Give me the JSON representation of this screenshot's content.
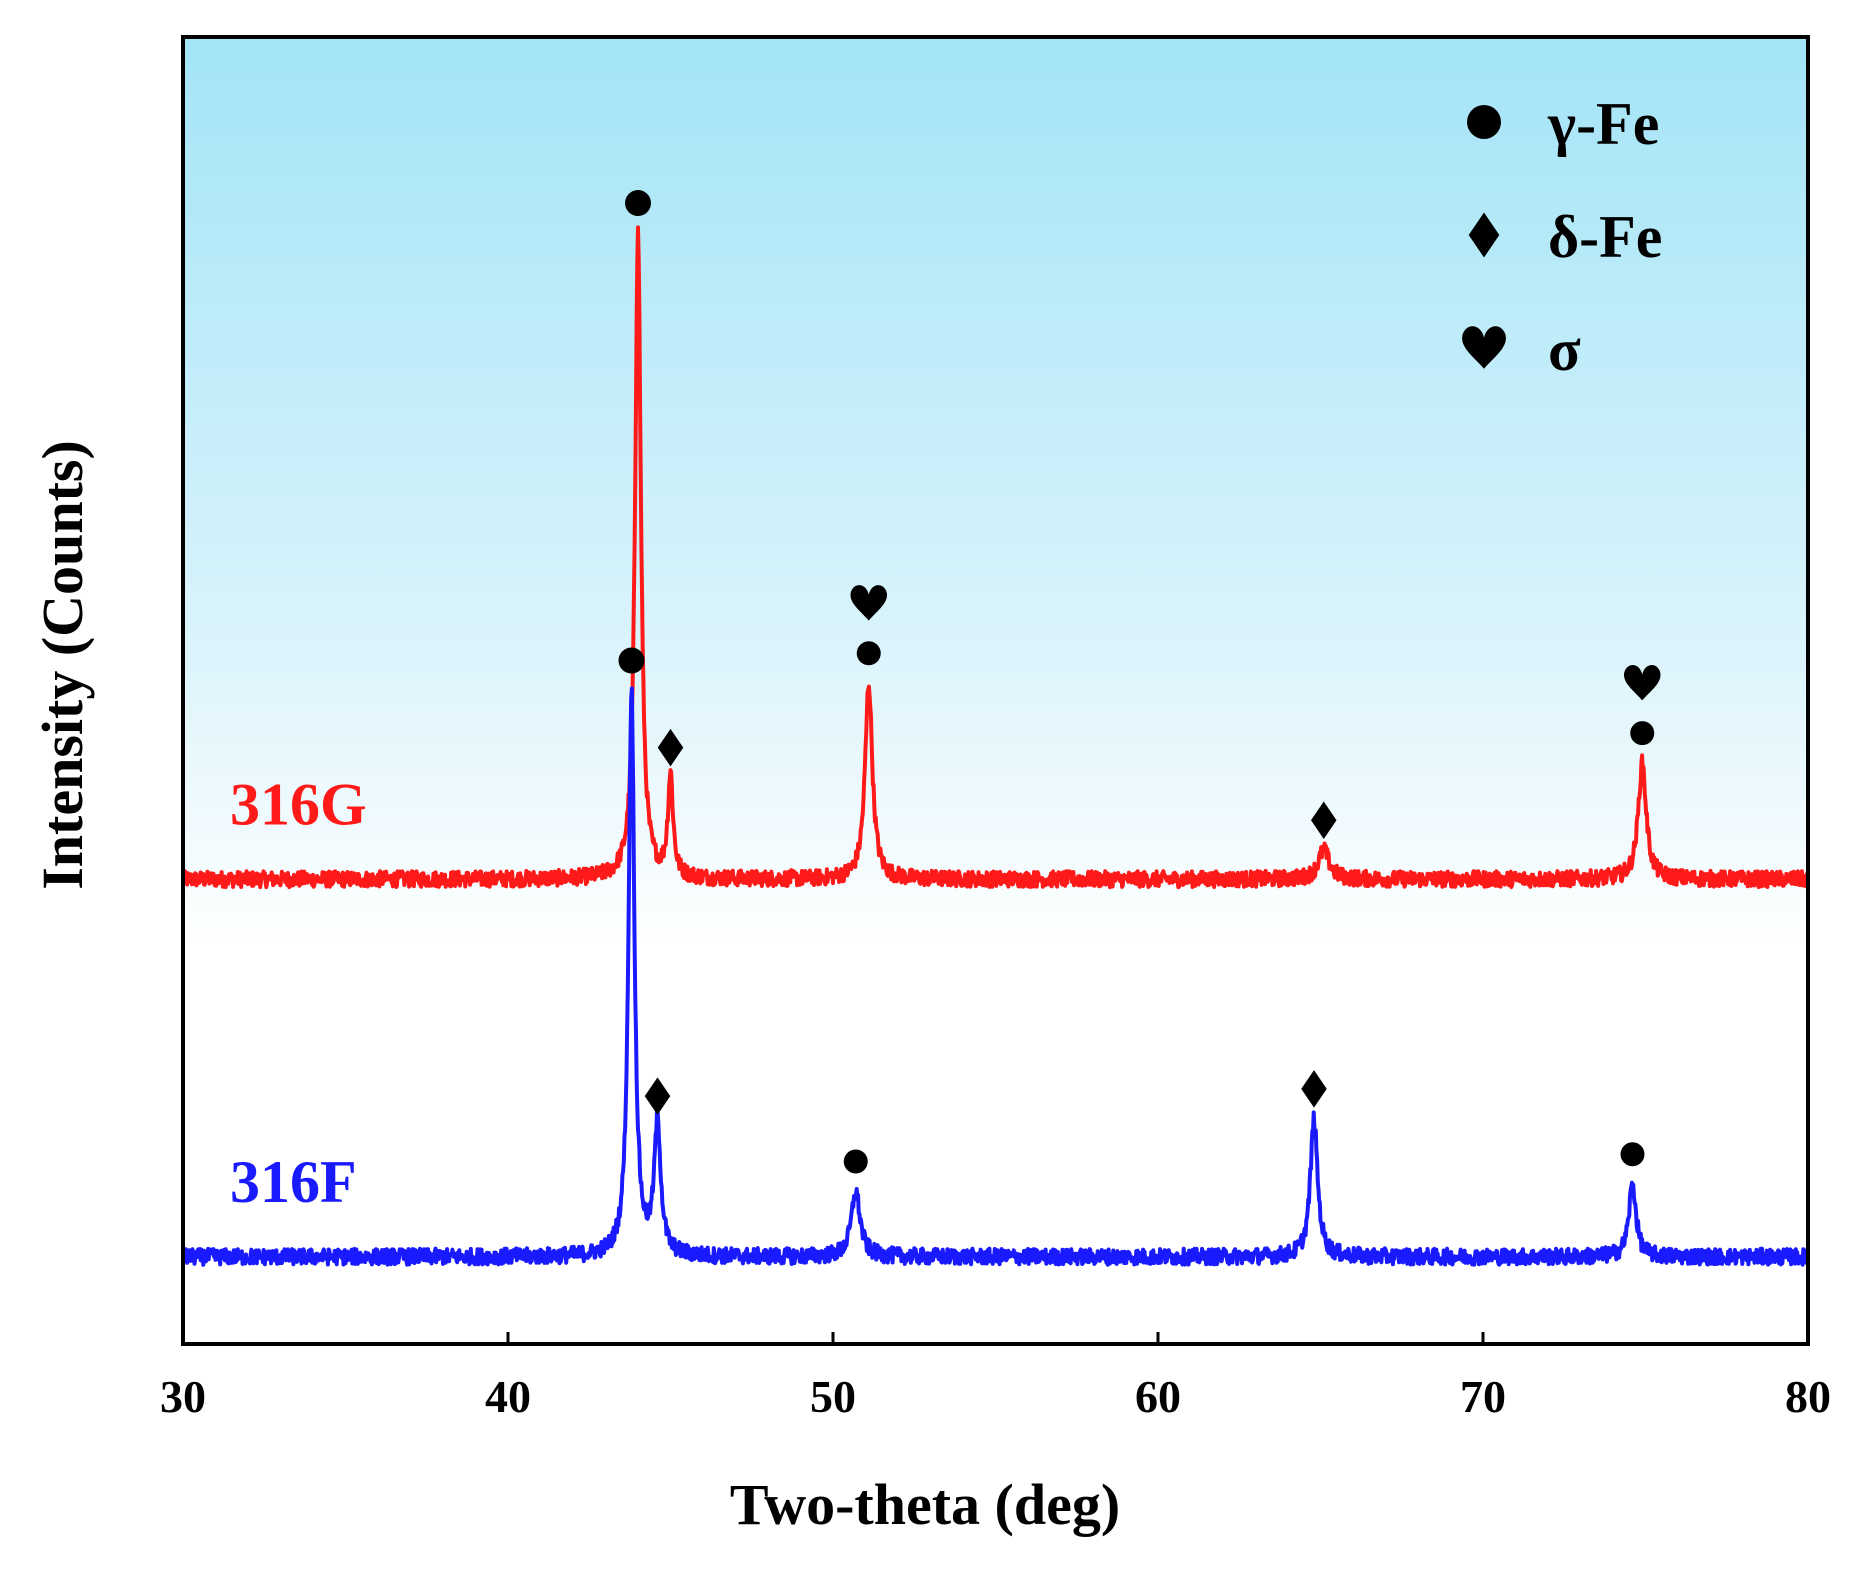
{
  "chart_data": {
    "type": "line",
    "xlabel": "Two-theta (deg)",
    "ylabel": "Intensity (Counts)",
    "xlim": [
      30,
      80
    ],
    "x_ticks": [
      "30",
      "40",
      "50",
      "60",
      "70",
      "80"
    ],
    "y_ticks_shown": false,
    "grid": false,
    "background": {
      "top": "#a3e4f7",
      "bottom": "#ffffff"
    },
    "legend": {
      "placement": "top-right",
      "items": [
        {
          "marker": "circle",
          "label": "γ-Fe"
        },
        {
          "marker": "diamond",
          "label": "δ-Fe"
        },
        {
          "marker": "heart",
          "label": "σ"
        }
      ]
    },
    "series": [
      {
        "name": "316G",
        "color": "#ff1a1a",
        "baseline": 6.4,
        "peaks": [
          {
            "x": 44.0,
            "height": 8.9,
            "width": 0.16,
            "markers": [
              "circle"
            ]
          },
          {
            "x": 45.0,
            "height": 1.4,
            "width": 0.14,
            "markers": [
              "diamond"
            ]
          },
          {
            "x": 51.1,
            "height": 2.7,
            "width": 0.2,
            "markers": [
              "circle",
              "heart"
            ]
          },
          {
            "x": 65.1,
            "height": 0.4,
            "width": 0.3,
            "markers": [
              "diamond"
            ]
          },
          {
            "x": 74.9,
            "height": 1.6,
            "width": 0.22,
            "markers": [
              "circle",
              "heart"
            ]
          }
        ]
      },
      {
        "name": "316F",
        "color": "#1a1aff",
        "baseline": 1.2,
        "peaks": [
          {
            "x": 43.8,
            "height": 7.8,
            "width": 0.16,
            "markers": [
              "circle"
            ]
          },
          {
            "x": 44.6,
            "height": 1.8,
            "width": 0.18,
            "markers": [
              "diamond"
            ]
          },
          {
            "x": 50.7,
            "height": 0.9,
            "width": 0.24,
            "markers": [
              "circle"
            ]
          },
          {
            "x": 64.8,
            "height": 1.9,
            "width": 0.2,
            "markers": [
              "diamond"
            ]
          },
          {
            "x": 74.6,
            "height": 1.0,
            "width": 0.2,
            "markers": [
              "circle"
            ]
          }
        ]
      }
    ]
  }
}
